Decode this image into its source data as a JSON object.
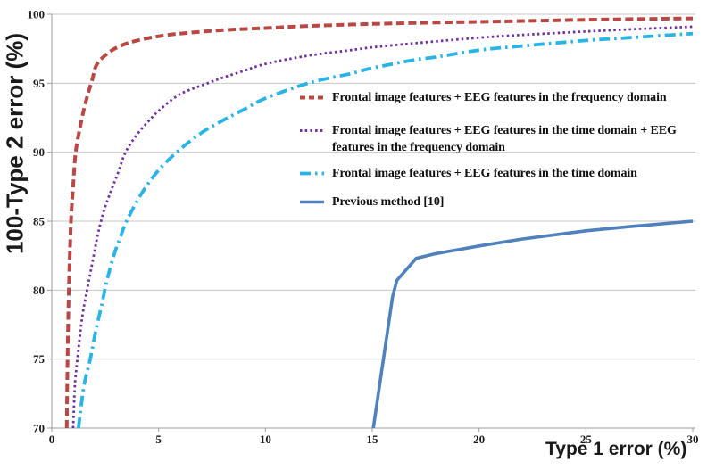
{
  "chart_data": {
    "type": "line",
    "title": "",
    "xlabel": "Type 1 error (%)",
    "ylabel": "100-Type 2 error (%)",
    "xlim": [
      0,
      30
    ],
    "ylim": [
      70,
      100
    ],
    "xticks": [
      0,
      5,
      10,
      15,
      20,
      25,
      30
    ],
    "yticks": [
      70,
      75,
      80,
      85,
      90,
      95,
      100
    ],
    "grid": "horizontal gridlines at every y tick, top border line, no right border",
    "legend_position": "inside upper right, no box",
    "colors": {
      "gridline": "#c7c7c7",
      "axis": "#9e9e9e",
      "text": "#1a1a1a",
      "background": "#ffffff"
    },
    "series": [
      {
        "label": "Frontal image features + EEG features in the frequency domain",
        "label_lines": [
          "Frontal image features + EEG features in the frequency domain"
        ],
        "color": "#b94743",
        "style": "dashed",
        "smooth": true,
        "points": [
          [
            0.7,
            70
          ],
          [
            0.74,
            75
          ],
          [
            0.8,
            80
          ],
          [
            0.9,
            85
          ],
          [
            1.0,
            87.5
          ],
          [
            1.12,
            90
          ],
          [
            1.35,
            92
          ],
          [
            1.6,
            93.7
          ],
          [
            1.9,
            95.3
          ],
          [
            2.1,
            96.35
          ],
          [
            2.6,
            97.15
          ],
          [
            3.2,
            97.7
          ],
          [
            4,
            98.1
          ],
          [
            5,
            98.4
          ],
          [
            6,
            98.6
          ],
          [
            8,
            98.85
          ],
          [
            10,
            99.0
          ],
          [
            12,
            99.15
          ],
          [
            15,
            99.3
          ],
          [
            18,
            99.4
          ],
          [
            20,
            99.45
          ],
          [
            25,
            99.6
          ],
          [
            30,
            99.7
          ]
        ]
      },
      {
        "label": "Frontal image features + EEG features in the time domain + EEG features in the frequency domain",
        "label_lines": [
          "Frontal image features + EEG features in the time domain + EEG",
          "features in the frequency domain"
        ],
        "color": "#7030a0",
        "style": "dotted",
        "smooth": true,
        "points": [
          [
            1.0,
            70
          ],
          [
            1.08,
            73
          ],
          [
            1.2,
            75
          ],
          [
            1.42,
            78
          ],
          [
            1.65,
            80
          ],
          [
            1.9,
            82
          ],
          [
            2.15,
            84
          ],
          [
            2.45,
            85.8
          ],
          [
            2.8,
            87.3
          ],
          [
            3.1,
            88.5
          ],
          [
            3.45,
            90
          ],
          [
            4,
            91.3
          ],
          [
            4.5,
            92.2
          ],
          [
            5,
            93
          ],
          [
            6,
            94.2
          ],
          [
            7.3,
            95
          ],
          [
            8,
            95.4
          ],
          [
            9,
            95.9
          ],
          [
            10,
            96.4
          ],
          [
            12,
            97.0
          ],
          [
            14,
            97.4
          ],
          [
            15,
            97.6
          ],
          [
            17,
            97.9
          ],
          [
            20,
            98.3
          ],
          [
            22,
            98.5
          ],
          [
            25,
            98.75
          ],
          [
            27,
            98.9
          ],
          [
            30,
            99.1
          ]
        ]
      },
      {
        "label": "Frontal image features + EEG features in the time domain",
        "label_lines": [
          "Frontal image features + EEG features in the time domain"
        ],
        "color": "#29b3e6",
        "style": "dashdot",
        "smooth": true,
        "points": [
          [
            1.25,
            70
          ],
          [
            1.5,
            73
          ],
          [
            1.8,
            75
          ],
          [
            2.05,
            77
          ],
          [
            2.35,
            79
          ],
          [
            2.55,
            80.5
          ],
          [
            2.9,
            82.5
          ],
          [
            3.2,
            83.8
          ],
          [
            3.5,
            85
          ],
          [
            4.2,
            87
          ],
          [
            5,
            88.7
          ],
          [
            6,
            90.2
          ],
          [
            7,
            91.4
          ],
          [
            8,
            92.3
          ],
          [
            9,
            93.1
          ],
          [
            10,
            93.9
          ],
          [
            12,
            95.0
          ],
          [
            14,
            95.7
          ],
          [
            15,
            96.1
          ],
          [
            17,
            96.7
          ],
          [
            18,
            96.9
          ],
          [
            20,
            97.4
          ],
          [
            22,
            97.7
          ],
          [
            25,
            98.1
          ],
          [
            27,
            98.3
          ],
          [
            30,
            98.6
          ]
        ]
      },
      {
        "label": "Previous method [10]",
        "label_lines": [
          "Previous method [10]"
        ],
        "color": "#4f81bd",
        "style": "solid",
        "smooth": false,
        "points": [
          [
            15.05,
            70
          ],
          [
            15.95,
            79.5
          ],
          [
            16.15,
            80.7
          ],
          [
            17.05,
            82.3
          ],
          [
            18,
            82.65
          ],
          [
            20,
            83.2
          ],
          [
            22,
            83.7
          ],
          [
            25,
            84.3
          ],
          [
            27,
            84.6
          ],
          [
            30,
            85.0
          ]
        ]
      }
    ]
  }
}
